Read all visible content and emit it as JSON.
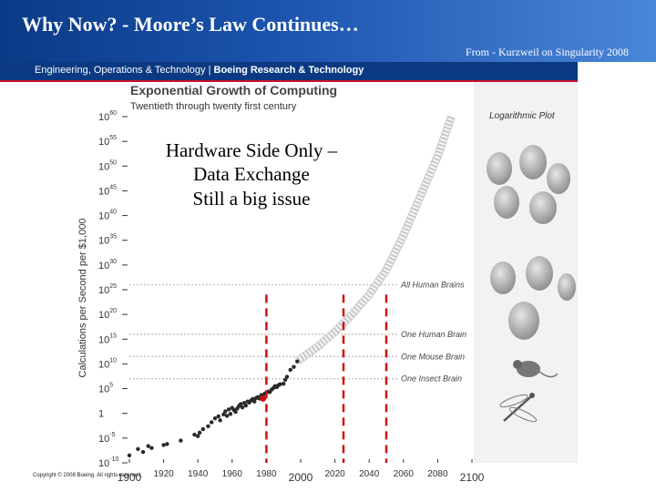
{
  "slide": {
    "title": "Why Now? - Moore’s Law Continues…",
    "source": "From - Kurzweil on Singularity 2008",
    "band_part1": "Engineering, Operations & Technology | ",
    "band_part2": "Boeing Research & Technology",
    "overlay_lines": [
      "Hardware Side Only –",
      "Data Exchange",
      "Still a big issue"
    ],
    "copyright": "Copyright © 2008 Boeing. All rights reserved."
  },
  "chart_data": {
    "type": "scatter",
    "title": "Exponential Growth of Computing",
    "subtitle": "Twentieth through twenty first century",
    "ylabel": "Calculations per Second per $1,000",
    "box_label": "Logarithmic Plot",
    "scale": "log",
    "xlim": [
      1900,
      2100
    ],
    "ylim_exponent": [
      -10,
      60
    ],
    "x_ticks": [
      1900,
      1920,
      1940,
      1960,
      1980,
      2000,
      2020,
      2040,
      2060,
      2080,
      2100
    ],
    "y_tick_exponents": [
      60,
      55,
      50,
      45,
      40,
      35,
      30,
      25,
      20,
      15,
      10,
      5,
      0,
      -5,
      -10
    ],
    "y_tick_labels": [
      {
        "base": "10",
        "sup": "60"
      },
      {
        "base": "10",
        "sup": "55"
      },
      {
        "base": "10",
        "sup": "50"
      },
      {
        "base": "10",
        "sup": "45"
      },
      {
        "base": "10",
        "sup": "40"
      },
      {
        "base": "10",
        "sup": "35"
      },
      {
        "base": "10",
        "sup": "30"
      },
      {
        "base": "10",
        "sup": "25"
      },
      {
        "base": "10",
        "sup": "20"
      },
      {
        "base": "10",
        "sup": "15"
      },
      {
        "base": "10",
        "sup": "10"
      },
      {
        "base": "10",
        "sup": "5"
      },
      {
        "base": "1",
        "sup": ""
      },
      {
        "base": "10",
        "sup": "-5"
      },
      {
        "base": "10",
        "sup": "-10"
      }
    ],
    "historical": [
      [
        1900,
        -8.5
      ],
      [
        1905,
        -7.2
      ],
      [
        1908,
        -7.8
      ],
      [
        1911,
        -6.6
      ],
      [
        1913,
        -7.0
      ],
      [
        1920,
        -6.4
      ],
      [
        1922,
        -6.2
      ],
      [
        1930,
        -5.5
      ],
      [
        1938,
        -4.3
      ],
      [
        1940,
        -4.6
      ],
      [
        1941,
        -3.9
      ],
      [
        1943,
        -3.2
      ],
      [
        1946,
        -2.6
      ],
      [
        1948,
        -1.8
      ],
      [
        1950,
        -1.0
      ],
      [
        1952,
        -0.6
      ],
      [
        1953,
        -1.4
      ],
      [
        1955,
        -0.2
      ],
      [
        1956,
        0.4
      ],
      [
        1957,
        -0.5
      ],
      [
        1958,
        0.8
      ],
      [
        1959,
        -0.1
      ],
      [
        1960,
        1.1
      ],
      [
        1961,
        0.7
      ],
      [
        1962,
        0.3
      ],
      [
        1963,
        1.0
      ],
      [
        1964,
        1.5
      ],
      [
        1965,
        1.9
      ],
      [
        1966,
        1.2
      ],
      [
        1967,
        2.1
      ],
      [
        1968,
        1.6
      ],
      [
        1969,
        2.4
      ],
      [
        1970,
        2.2
      ],
      [
        1971,
        2.6
      ],
      [
        1972,
        2.9
      ],
      [
        1973,
        2.4
      ],
      [
        1974,
        3.1
      ],
      [
        1975,
        3.3
      ],
      [
        1976,
        3.0
      ],
      [
        1977,
        3.7
      ],
      [
        1978,
        3.5
      ],
      [
        1979,
        4.0
      ],
      [
        1980,
        4.2
      ],
      [
        1981,
        4.4
      ],
      [
        1982,
        4.3
      ],
      [
        1983,
        4.8
      ],
      [
        1984,
        5.1
      ],
      [
        1985,
        5.5
      ],
      [
        1986,
        5.3
      ],
      [
        1987,
        5.7
      ],
      [
        1988,
        5.9
      ],
      [
        1990,
        6.0
      ],
      [
        1991,
        6.8
      ],
      [
        1992,
        7.4
      ],
      [
        1994,
        8.8
      ],
      [
        1996,
        9.4
      ],
      [
        1998,
        10.5
      ]
    ],
    "projection": [
      [
        1998,
        10.5
      ],
      [
        2010,
        13.5
      ],
      [
        2020,
        16.5
      ],
      [
        2030,
        20
      ],
      [
        2040,
        24
      ],
      [
        2050,
        29
      ],
      [
        2060,
        36
      ],
      [
        2070,
        44
      ],
      [
        2080,
        52
      ],
      [
        2088,
        60
      ]
    ],
    "benchmarks": [
      {
        "label": "All Human Brains",
        "exponent": 26
      },
      {
        "label": "One Human Brain",
        "exponent": 16
      },
      {
        "label": "One Mouse Brain",
        "exponent": 11.5
      },
      {
        "label": "One Insect Brain",
        "exponent": 7
      }
    ],
    "red_markers": [
      1980,
      2025,
      2050
    ],
    "red_star": [
      1978,
      3.0
    ]
  }
}
